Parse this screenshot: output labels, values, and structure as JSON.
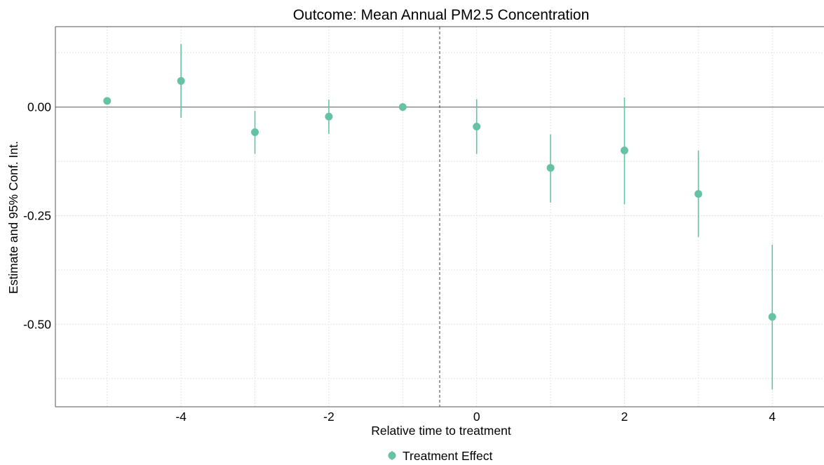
{
  "chart_data": {
    "type": "scatter",
    "title": "Outcome: Mean Annual PM2.5 Concentration",
    "xlabel": "Relative time to treatment",
    "ylabel": "Estimate and 95% Conf. Int.",
    "xlim": [
      -5.7,
      4.7
    ],
    "ylim": [
      -0.69,
      0.185
    ],
    "x_ticks": [
      -4,
      -2,
      0,
      2,
      4
    ],
    "x_tick_labels": [
      "-4",
      "-2",
      "0",
      "2",
      "4"
    ],
    "y_ticks": [
      0.0,
      -0.25,
      -0.5
    ],
    "y_tick_labels": [
      "0.00",
      "-0.25",
      "-0.50"
    ],
    "reference_line_y": 0,
    "reference_line_x": -0.5,
    "grid": true,
    "legend_position": "bottom",
    "series": [
      {
        "name": "Treatment Effect",
        "color": "#66c2a5",
        "points": [
          {
            "x": -5,
            "y": 0.014,
            "ci": null
          },
          {
            "x": -4,
            "y": 0.06,
            "ci": [
              -0.025,
              0.145
            ]
          },
          {
            "x": -3,
            "y": -0.058,
            "ci": [
              -0.108,
              -0.009
            ]
          },
          {
            "x": -2,
            "y": -0.022,
            "ci": [
              -0.062,
              0.017
            ]
          },
          {
            "x": -1,
            "y": 0.0,
            "ci": null
          },
          {
            "x": 0,
            "y": -0.045,
            "ci": [
              -0.108,
              0.018
            ]
          },
          {
            "x": 1,
            "y": -0.14,
            "ci": [
              -0.22,
              -0.063
            ]
          },
          {
            "x": 2,
            "y": -0.1,
            "ci": [
              -0.224,
              0.022
            ]
          },
          {
            "x": 3,
            "y": -0.2,
            "ci": [
              -0.299,
              -0.1
            ]
          },
          {
            "x": 4,
            "y": -0.483,
            "ci": [
              -0.65,
              -0.317
            ]
          }
        ]
      }
    ]
  }
}
